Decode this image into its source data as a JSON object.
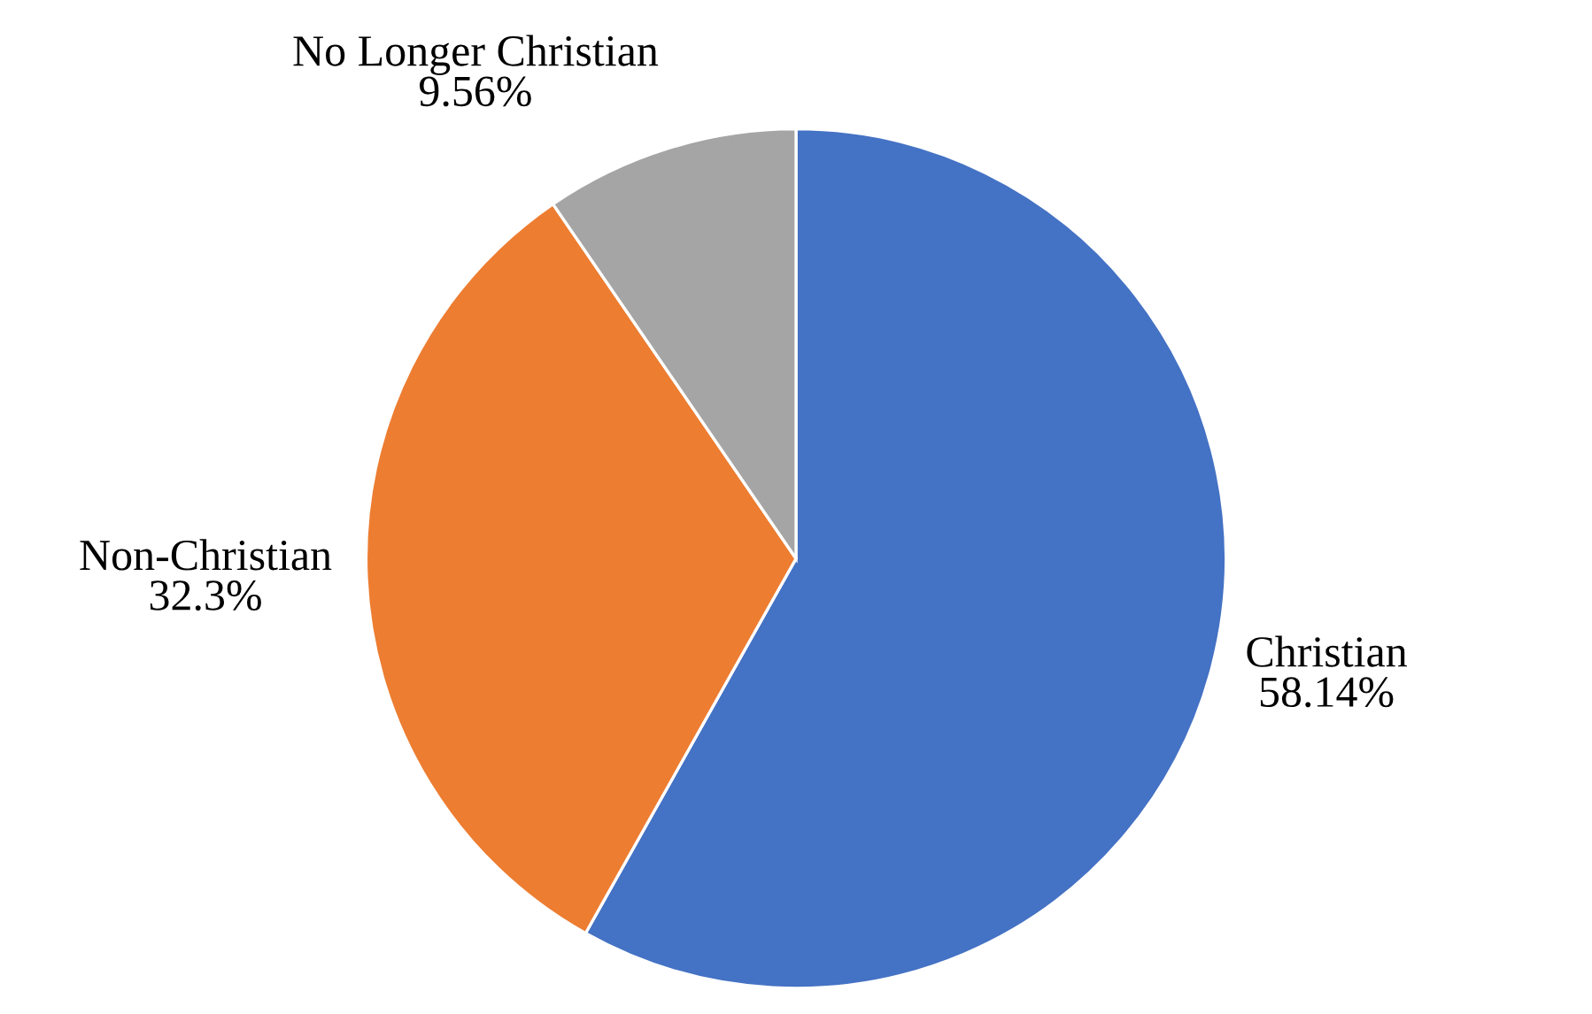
{
  "chart_data": {
    "type": "pie",
    "categories": [
      "Christian",
      "Non-Christian",
      "No Longer Christian"
    ],
    "values": [
      58.14,
      32.3,
      9.56
    ],
    "value_labels": [
      "58.14%",
      "32.3%",
      "9.56%"
    ],
    "colors": [
      "#4472c4",
      "#ed7d31",
      "#a5a5a5"
    ],
    "legend": false
  }
}
